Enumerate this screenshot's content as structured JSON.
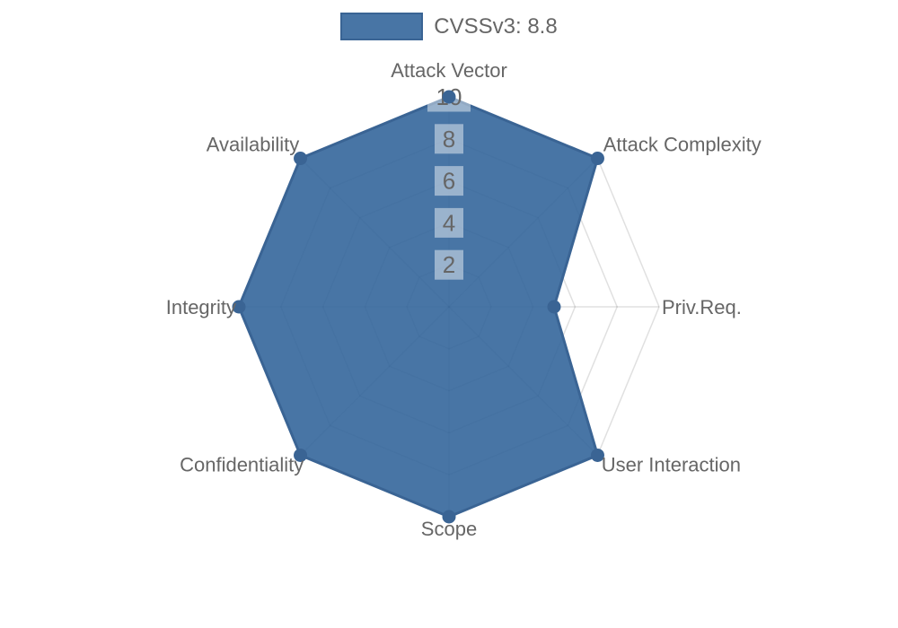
{
  "legend": {
    "label": "CVSSv3: 8.8"
  },
  "colors": {
    "series_line": "#3A6494",
    "series_fill": "rgba(47,98,153,0.88)",
    "grid": "rgba(0,0,0,0.12)",
    "label_text": "#666666",
    "tick_text": "#666666",
    "tick_backdrop": "rgba(255,255,255,0.45)"
  },
  "chart_data": {
    "type": "radar",
    "categories": [
      "Attack Vector",
      "Attack Complexity",
      "Priv.Req.",
      "User Interaction",
      "Scope",
      "Confidentiality",
      "Integrity",
      "Availability"
    ],
    "series": [
      {
        "name": "CVSSv3: 8.8",
        "values": [
          10,
          10,
          5,
          10,
          10,
          10,
          10,
          10
        ]
      }
    ],
    "ticks": [
      2,
      4,
      6,
      8,
      10
    ],
    "rlim": [
      0,
      10
    ],
    "grid": true,
    "legend_position": "top-center"
  }
}
